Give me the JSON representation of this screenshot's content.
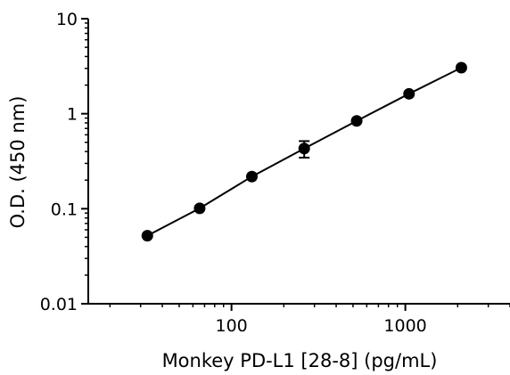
{
  "chart_data": {
    "type": "scatter",
    "xlabel": "Monkey PD-L1 [28-8] (pg/mL)",
    "ylabel": "O.D. (450 nm)",
    "x_scale": "log",
    "y_scale": "log",
    "xlim": [
      15,
      4000
    ],
    "ylim": [
      0.01,
      10
    ],
    "x_ticks": [
      {
        "value": 100,
        "label": "100"
      },
      {
        "value": 1000,
        "label": "1000"
      }
    ],
    "y_ticks": [
      {
        "value": 10,
        "label": "10"
      },
      {
        "value": 1,
        "label": "1"
      },
      {
        "value": 0.1,
        "label": "0.1"
      },
      {
        "value": 0.01,
        "label": "0.01"
      }
    ],
    "grid": false,
    "series": [
      {
        "points": [
          {
            "x": 32.8,
            "y": 0.052
          },
          {
            "x": 65.6,
            "y": 0.101
          },
          {
            "x": 131,
            "y": 0.218
          },
          {
            "x": 262,
            "y": 0.43,
            "err": 0.085
          },
          {
            "x": 525,
            "y": 0.84
          },
          {
            "x": 1050,
            "y": 1.62
          },
          {
            "x": 2100,
            "y": 3.05
          }
        ],
        "color": "#000000",
        "fit_line": true
      }
    ]
  }
}
